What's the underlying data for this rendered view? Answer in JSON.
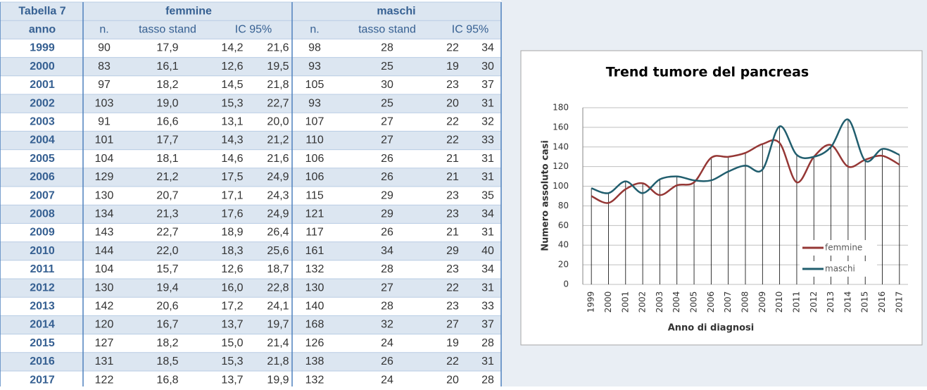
{
  "table": {
    "header": [
      "Tabella 7",
      "femmine",
      "maschi"
    ],
    "columns": [
      "anno",
      "n.",
      "tasso stand",
      "IC 95%",
      "n.",
      "tasso stand",
      "IC 95%"
    ],
    "rows": [
      [
        "1999",
        "90",
        "17,9",
        "14,2",
        "21,6",
        "98",
        "28",
        "22",
        "34"
      ],
      [
        "2000",
        "83",
        "16,1",
        "12,6",
        "19,5",
        "93",
        "25",
        "19",
        "30"
      ],
      [
        "2001",
        "97",
        "18,2",
        "14,5",
        "21,8",
        "105",
        "30",
        "23",
        "37"
      ],
      [
        "2002",
        "103",
        "19,0",
        "15,3",
        "22,7",
        "93",
        "25",
        "20",
        "31"
      ],
      [
        "2003",
        "91",
        "16,6",
        "13,1",
        "20,0",
        "107",
        "27",
        "22",
        "32"
      ],
      [
        "2004",
        "101",
        "17,7",
        "14,3",
        "21,2",
        "110",
        "27",
        "22",
        "33"
      ],
      [
        "2005",
        "104",
        "18,1",
        "14,6",
        "21,6",
        "106",
        "26",
        "21",
        "31"
      ],
      [
        "2006",
        "129",
        "21,2",
        "17,5",
        "24,9",
        "106",
        "26",
        "21",
        "31"
      ],
      [
        "2007",
        "130",
        "20,7",
        "17,1",
        "24,3",
        "115",
        "29",
        "23",
        "35"
      ],
      [
        "2008",
        "134",
        "21,3",
        "17,6",
        "24,9",
        "121",
        "29",
        "23",
        "34"
      ],
      [
        "2009",
        "143",
        "22,7",
        "18,9",
        "26,4",
        "117",
        "26",
        "21",
        "31"
      ],
      [
        "2010",
        "144",
        "22,0",
        "18,3",
        "25,6",
        "161",
        "34",
        "29",
        "40"
      ],
      [
        "2011",
        "104",
        "15,7",
        "12,6",
        "18,7",
        "132",
        "28",
        "23",
        "34"
      ],
      [
        "2012",
        "130",
        "19,4",
        "16,0",
        "22,8",
        "130",
        "27",
        "22",
        "31"
      ],
      [
        "2013",
        "142",
        "20,6",
        "17,2",
        "24,1",
        "140",
        "28",
        "23",
        "33"
      ],
      [
        "2014",
        "120",
        "16,7",
        "13,7",
        "19,7",
        "168",
        "32",
        "27",
        "37"
      ],
      [
        "2015",
        "127",
        "18,2",
        "15,0",
        "21,4",
        "126",
        "24",
        "19",
        "28"
      ],
      [
        "2016",
        "131",
        "18,5",
        "15,3",
        "21,8",
        "138",
        "26",
        "22",
        "31"
      ],
      [
        "2017",
        "122",
        "16,8",
        "13,7",
        "19,9",
        "132",
        "24",
        "20",
        "28"
      ]
    ]
  },
  "chart_data": {
    "type": "line",
    "title": "Trend tumore del pancreas",
    "x_label": "Anno di diagnosi",
    "y_label": "Numero assoluto casi",
    "categories": [
      "1999",
      "2000",
      "2001",
      "2002",
      "2003",
      "2004",
      "2005",
      "2006",
      "2007",
      "2008",
      "2009",
      "2010",
      "2011",
      "2012",
      "2013",
      "2014",
      "2015",
      "2016",
      "2017"
    ],
    "series": [
      {
        "name": "femmine",
        "color": "#953735",
        "values": [
          90,
          83,
          97,
          103,
          91,
          101,
          104,
          129,
          130,
          134,
          143,
          144,
          104,
          130,
          142,
          120,
          127,
          131,
          122
        ]
      },
      {
        "name": "maschi",
        "color": "#215e6e",
        "values": [
          98,
          93,
          105,
          93,
          107,
          110,
          106,
          106,
          115,
          121,
          117,
          161,
          132,
          130,
          140,
          168,
          126,
          138,
          132
        ]
      }
    ],
    "ylim": [
      0,
      180
    ],
    "yticks": [
      0,
      20,
      40,
      60,
      80,
      100,
      120,
      140,
      160,
      180
    ],
    "grid": true,
    "legend": "lower right"
  }
}
